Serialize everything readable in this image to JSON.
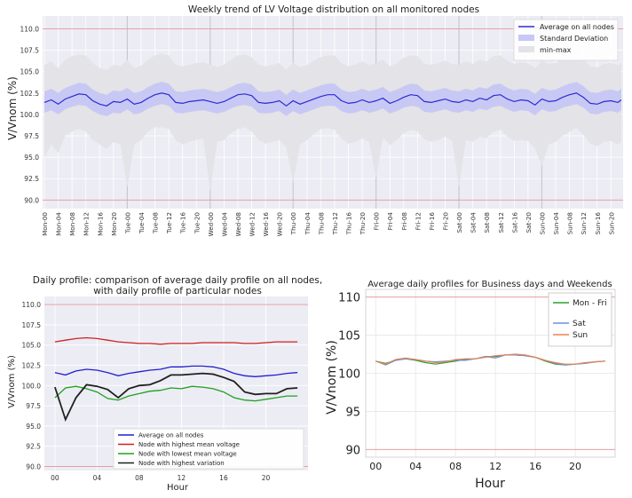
{
  "charts": {
    "weekly": {
      "title": "Weekly trend of LV Voltage distribution on all monitored nodes",
      "ylabel": "V/Vnom (%)"
    },
    "daily_nodes": {
      "title_line1": "Daily profile: comparison of average daily profile on all nodes,",
      "title_line2": "with daily profile of particular nodes",
      "xlabel": "Hour",
      "ylabel": "V/Vnom (%)"
    },
    "daily_days": {
      "title": "Average daily profiles for Business days and Weekends",
      "xlabel": "Hour",
      "ylabel": "V/Vnom (%)"
    }
  },
  "chart_data": [
    {
      "type": "area",
      "title": "Weekly trend of LV Voltage distribution on all monitored nodes",
      "xlabel": "",
      "ylabel": "V/Vnom (%)",
      "ylim": [
        89.0,
        111.5
      ],
      "yticks": [
        90.0,
        92.5,
        95.0,
        97.5,
        100.0,
        102.5,
        105.0,
        107.5,
        110.0
      ],
      "grid": true,
      "legend_position": "top-right",
      "legend": [
        "Average on all nodes",
        "Standard Deviation",
        "min-max"
      ],
      "colors": {
        "average": "#2b2bd6",
        "std": "#c8c8f4",
        "minmax": "#e3e3e8",
        "limit": "#e8a0a0"
      },
      "x_tick_labels": [
        "Mon-00",
        "Mon-04",
        "Mon-08",
        "Mon-12",
        "Mon-16",
        "Mon-20",
        "Tue-00",
        "Tue-04",
        "Tue-08",
        "Tue-12",
        "Tue-16",
        "Tue-20",
        "Wed-00",
        "Wed-04",
        "Wed-08",
        "Wed-12",
        "Wed-16",
        "Wed-20",
        "Thu-00",
        "Thu-04",
        "Thu-08",
        "Thu-12",
        "Thu-16",
        "Thu-20",
        "Fri-00",
        "Fri-04",
        "Fri-08",
        "Fri-12",
        "Fri-16",
        "Fri-20",
        "Sat-00",
        "Sat-04",
        "Sat-08",
        "Sat-12",
        "Sat-16",
        "Sat-20",
        "Sun-00",
        "Sun-04",
        "Sun-08",
        "Sun-12",
        "Sun-16",
        "Sun-20"
      ],
      "limit_lines": [
        90.0,
        110.0
      ],
      "x_hours": [
        0,
        2,
        4,
        6,
        8,
        10,
        12,
        14,
        16,
        18,
        20,
        22,
        24,
        26,
        28,
        30,
        32,
        34,
        36,
        38,
        40,
        42,
        44,
        46,
        48,
        50,
        52,
        54,
        56,
        58,
        60,
        62,
        64,
        66,
        68,
        70,
        72,
        74,
        76,
        78,
        80,
        82,
        84,
        86,
        88,
        90,
        92,
        94,
        96,
        98,
        100,
        102,
        104,
        106,
        108,
        110,
        112,
        114,
        116,
        118,
        120,
        122,
        124,
        126,
        128,
        130,
        132,
        134,
        136,
        138,
        140,
        142,
        144,
        146,
        148,
        150,
        152,
        154,
        156,
        158,
        160,
        162,
        164,
        166,
        167
      ],
      "series": [
        {
          "name": "Average on all nodes",
          "values": [
            101.4,
            101.7,
            101.2,
            101.8,
            102.1,
            102.4,
            102.3,
            101.6,
            101.2,
            101.0,
            101.5,
            101.4,
            101.8,
            101.2,
            101.4,
            101.9,
            102.3,
            102.5,
            102.3,
            101.4,
            101.3,
            101.5,
            101.6,
            101.7,
            101.5,
            101.3,
            101.5,
            101.9,
            102.3,
            102.4,
            102.2,
            101.4,
            101.3,
            101.4,
            101.6,
            101.0,
            101.6,
            101.2,
            101.5,
            101.8,
            102.1,
            102.3,
            102.3,
            101.6,
            101.3,
            101.4,
            101.7,
            101.4,
            101.6,
            101.9,
            101.3,
            101.6,
            102.0,
            102.3,
            102.2,
            101.5,
            101.4,
            101.6,
            101.8,
            101.5,
            101.4,
            101.7,
            101.5,
            101.9,
            101.7,
            102.2,
            102.3,
            101.8,
            101.5,
            101.7,
            101.6,
            101.1,
            101.8,
            101.5,
            101.6,
            102.0,
            102.3,
            102.5,
            102.0,
            101.3,
            101.2,
            101.5,
            101.6,
            101.4,
            101.7
          ]
        },
        {
          "name": "Standard Deviation",
          "lower": [
            100.2,
            100.5,
            100.0,
            100.6,
            100.9,
            101.1,
            101.0,
            100.4,
            100.0,
            99.8,
            100.2,
            100.1,
            100.6,
            100.0,
            100.2,
            100.7,
            101.0,
            101.2,
            101.0,
            100.2,
            100.1,
            100.3,
            100.4,
            100.5,
            100.3,
            100.1,
            100.3,
            100.7,
            101.0,
            101.1,
            100.9,
            100.2,
            100.1,
            100.2,
            100.4,
            99.8,
            100.4,
            100.0,
            100.3,
            100.6,
            100.9,
            101.0,
            101.0,
            100.4,
            100.1,
            100.2,
            100.5,
            100.2,
            100.4,
            100.7,
            100.1,
            100.4,
            100.8,
            101.0,
            100.9,
            100.3,
            100.2,
            100.4,
            100.6,
            100.3,
            100.2,
            100.5,
            100.3,
            100.7,
            100.5,
            100.9,
            101.0,
            100.6,
            100.3,
            100.5,
            100.4,
            99.9,
            100.6,
            100.3,
            100.4,
            100.8,
            101.0,
            101.2,
            100.8,
            100.1,
            100.0,
            100.3,
            100.4,
            100.2,
            100.5
          ],
          "upper": [
            102.7,
            103.0,
            102.5,
            103.1,
            103.4,
            103.7,
            103.6,
            102.9,
            102.5,
            102.3,
            102.8,
            102.7,
            103.1,
            102.5,
            102.7,
            103.2,
            103.6,
            103.8,
            103.6,
            102.7,
            102.6,
            102.8,
            102.9,
            103.0,
            102.8,
            102.6,
            102.8,
            103.2,
            103.6,
            103.7,
            103.5,
            102.7,
            102.6,
            102.7,
            102.9,
            102.3,
            102.9,
            102.5,
            102.8,
            103.1,
            103.4,
            103.6,
            103.6,
            102.9,
            102.6,
            102.7,
            103.0,
            102.7,
            102.9,
            103.2,
            102.6,
            102.9,
            103.3,
            103.6,
            103.5,
            102.8,
            102.7,
            102.9,
            103.1,
            102.8,
            102.7,
            103.0,
            102.8,
            103.2,
            103.0,
            103.5,
            103.6,
            103.1,
            102.8,
            103.0,
            102.9,
            102.4,
            103.1,
            102.8,
            102.9,
            103.3,
            103.6,
            103.8,
            103.3,
            102.6,
            102.5,
            102.8,
            102.9,
            102.7,
            103.0
          ]
        },
        {
          "name": "min-max",
          "lower": [
            95.0,
            96.5,
            95.5,
            97.5,
            98.0,
            98.3,
            98.0,
            97.0,
            96.5,
            96.0,
            96.8,
            96.5,
            91.5,
            96.5,
            97.0,
            98.0,
            98.5,
            98.5,
            98.3,
            97.0,
            96.5,
            96.8,
            97.0,
            97.2,
            91.0,
            96.8,
            97.0,
            97.8,
            98.3,
            98.5,
            98.0,
            97.0,
            96.6,
            96.8,
            97.0,
            96.2,
            92.0,
            96.5,
            97.0,
            97.7,
            98.3,
            98.4,
            98.2,
            97.2,
            96.6,
            96.8,
            97.2,
            96.8,
            92.5,
            97.3,
            96.4,
            97.0,
            97.8,
            98.2,
            98.0,
            97.1,
            96.8,
            97.0,
            97.4,
            96.9,
            91.5,
            97.0,
            96.8,
            97.4,
            97.2,
            98.0,
            98.2,
            97.4,
            96.9,
            97.0,
            96.9,
            96.0,
            94.0,
            96.5,
            96.8,
            97.5,
            98.0,
            98.4,
            97.6,
            96.6,
            96.3,
            96.8,
            96.9,
            96.5,
            96.8
          ],
          "upper": [
            105.8,
            106.2,
            105.4,
            106.4,
            106.8,
            107.0,
            106.9,
            106.0,
            105.4,
            105.2,
            105.8,
            105.6,
            106.4,
            105.4,
            105.7,
            106.4,
            106.9,
            107.1,
            106.9,
            105.8,
            105.6,
            105.8,
            106.0,
            106.1,
            105.8,
            105.5,
            105.8,
            106.4,
            106.9,
            107.0,
            106.7,
            105.8,
            105.6,
            105.8,
            106.0,
            105.2,
            106.0,
            105.5,
            105.8,
            106.3,
            106.7,
            106.9,
            106.9,
            106.0,
            105.6,
            105.8,
            106.2,
            105.8,
            106.0,
            106.4,
            105.6,
            106.0,
            106.6,
            106.9,
            106.8,
            105.9,
            105.8,
            106.0,
            106.3,
            105.9,
            105.8,
            106.2,
            105.9,
            106.4,
            106.2,
            106.8,
            106.9,
            106.3,
            105.9,
            106.1,
            106.0,
            105.4,
            106.3,
            105.9,
            106.0,
            106.5,
            106.9,
            107.1,
            106.5,
            105.6,
            105.5,
            105.9,
            106.0,
            105.7,
            106.1
          ]
        }
      ]
    },
    {
      "type": "line",
      "title": "Daily profile: comparison of average daily profile on all nodes, with daily profile of particular nodes",
      "xlabel": "Hour",
      "ylabel": "V/Vnom (%)",
      "xlim": [
        -1,
        24
      ],
      "ylim": [
        89.5,
        111.0
      ],
      "x_tick_labels": [
        "00",
        "04",
        "08",
        "12",
        "16",
        "20"
      ],
      "x_ticks": [
        0,
        4,
        8,
        12,
        16,
        20
      ],
      "yticks": [
        90.0,
        92.5,
        95.0,
        97.5,
        100.0,
        102.5,
        105.0,
        107.5,
        110.0
      ],
      "limit_lines": [
        90.0,
        110.0
      ],
      "grid": true,
      "legend_position": "bottom-right",
      "x": [
        0,
        1,
        2,
        3,
        4,
        5,
        6,
        7,
        8,
        9,
        10,
        11,
        12,
        13,
        14,
        15,
        16,
        17,
        18,
        19,
        20,
        21,
        22,
        23
      ],
      "series": [
        {
          "name": "Average on all nodes",
          "color": "#2020d0",
          "values": [
            101.6,
            101.3,
            101.8,
            102.0,
            101.9,
            101.6,
            101.2,
            101.5,
            101.7,
            101.9,
            102.0,
            102.3,
            102.3,
            102.4,
            102.4,
            102.3,
            102.0,
            101.5,
            101.2,
            101.1,
            101.2,
            101.3,
            101.5,
            101.6
          ]
        },
        {
          "name": "Node with highest mean voltage",
          "color": "#d02020",
          "values": [
            105.4,
            105.6,
            105.8,
            105.9,
            105.8,
            105.6,
            105.4,
            105.3,
            105.2,
            105.2,
            105.1,
            105.2,
            105.2,
            105.2,
            105.3,
            105.3,
            105.3,
            105.3,
            105.2,
            105.2,
            105.3,
            105.4,
            105.4,
            105.4
          ]
        },
        {
          "name": "Node with lowest mean voltage",
          "color": "#20a020",
          "values": [
            98.5,
            99.7,
            99.9,
            99.6,
            99.2,
            98.4,
            98.2,
            98.7,
            99.0,
            99.3,
            99.4,
            99.7,
            99.6,
            99.9,
            99.8,
            99.6,
            99.2,
            98.5,
            98.2,
            98.1,
            98.3,
            98.5,
            98.7,
            98.7
          ]
        },
        {
          "name": "Node with highest variation",
          "color": "#202020",
          "values": [
            99.8,
            95.8,
            98.5,
            100.1,
            99.9,
            99.5,
            98.5,
            99.6,
            100.0,
            100.1,
            100.6,
            101.3,
            101.3,
            101.4,
            101.5,
            101.4,
            101.0,
            100.5,
            99.2,
            98.9,
            99.0,
            99.0,
            99.6,
            99.7
          ]
        }
      ]
    },
    {
      "type": "line",
      "title": "Average daily profiles for Business days and Weekends",
      "xlabel": "Hour",
      "ylabel": "V/Vnom (%)",
      "xlim": [
        -1,
        24
      ],
      "ylim": [
        89.0,
        111.0
      ],
      "x_tick_labels": [
        "00",
        "04",
        "08",
        "12",
        "16",
        "20"
      ],
      "x_ticks": [
        0,
        4,
        8,
        12,
        16,
        20
      ],
      "yticks": [
        90,
        95,
        100,
        105,
        110
      ],
      "ytick_labels": [
        "90",
        "95",
        "100",
        "105",
        "110"
      ],
      "limit_lines": [
        90,
        110
      ],
      "grid": true,
      "legend_position": "top-right",
      "x": [
        0,
        1,
        2,
        3,
        4,
        5,
        6,
        7,
        8,
        9,
        10,
        11,
        12,
        13,
        14,
        15,
        16,
        17,
        18,
        19,
        20,
        21,
        22,
        23
      ],
      "series": [
        {
          "name": "Mon - Fri",
          "color": "#2ca02c",
          "values": [
            101.6,
            101.3,
            101.7,
            101.9,
            101.7,
            101.4,
            101.2,
            101.4,
            101.6,
            101.8,
            101.9,
            102.2,
            102.2,
            102.4,
            102.4,
            102.3,
            102.1,
            101.6,
            101.2,
            101.1,
            101.2,
            101.3,
            101.5,
            101.6
          ]
        },
        {
          "name": "Sat",
          "color": "#6f8fd8",
          "values": [
            101.6,
            101.1,
            101.7,
            101.9,
            101.8,
            101.6,
            101.5,
            101.6,
            101.7,
            101.7,
            101.9,
            102.2,
            102.0,
            102.4,
            102.4,
            102.3,
            102.1,
            101.7,
            101.3,
            101.1,
            101.2,
            101.3,
            101.5,
            101.6
          ]
        },
        {
          "name": "Sun",
          "color": "#e8825a",
          "values": [
            101.6,
            101.2,
            101.8,
            102.0,
            101.8,
            101.6,
            101.4,
            101.5,
            101.8,
            101.9,
            101.9,
            102.1,
            102.3,
            102.4,
            102.5,
            102.4,
            102.1,
            101.7,
            101.4,
            101.2,
            101.2,
            101.4,
            101.5,
            101.6
          ]
        }
      ]
    }
  ]
}
